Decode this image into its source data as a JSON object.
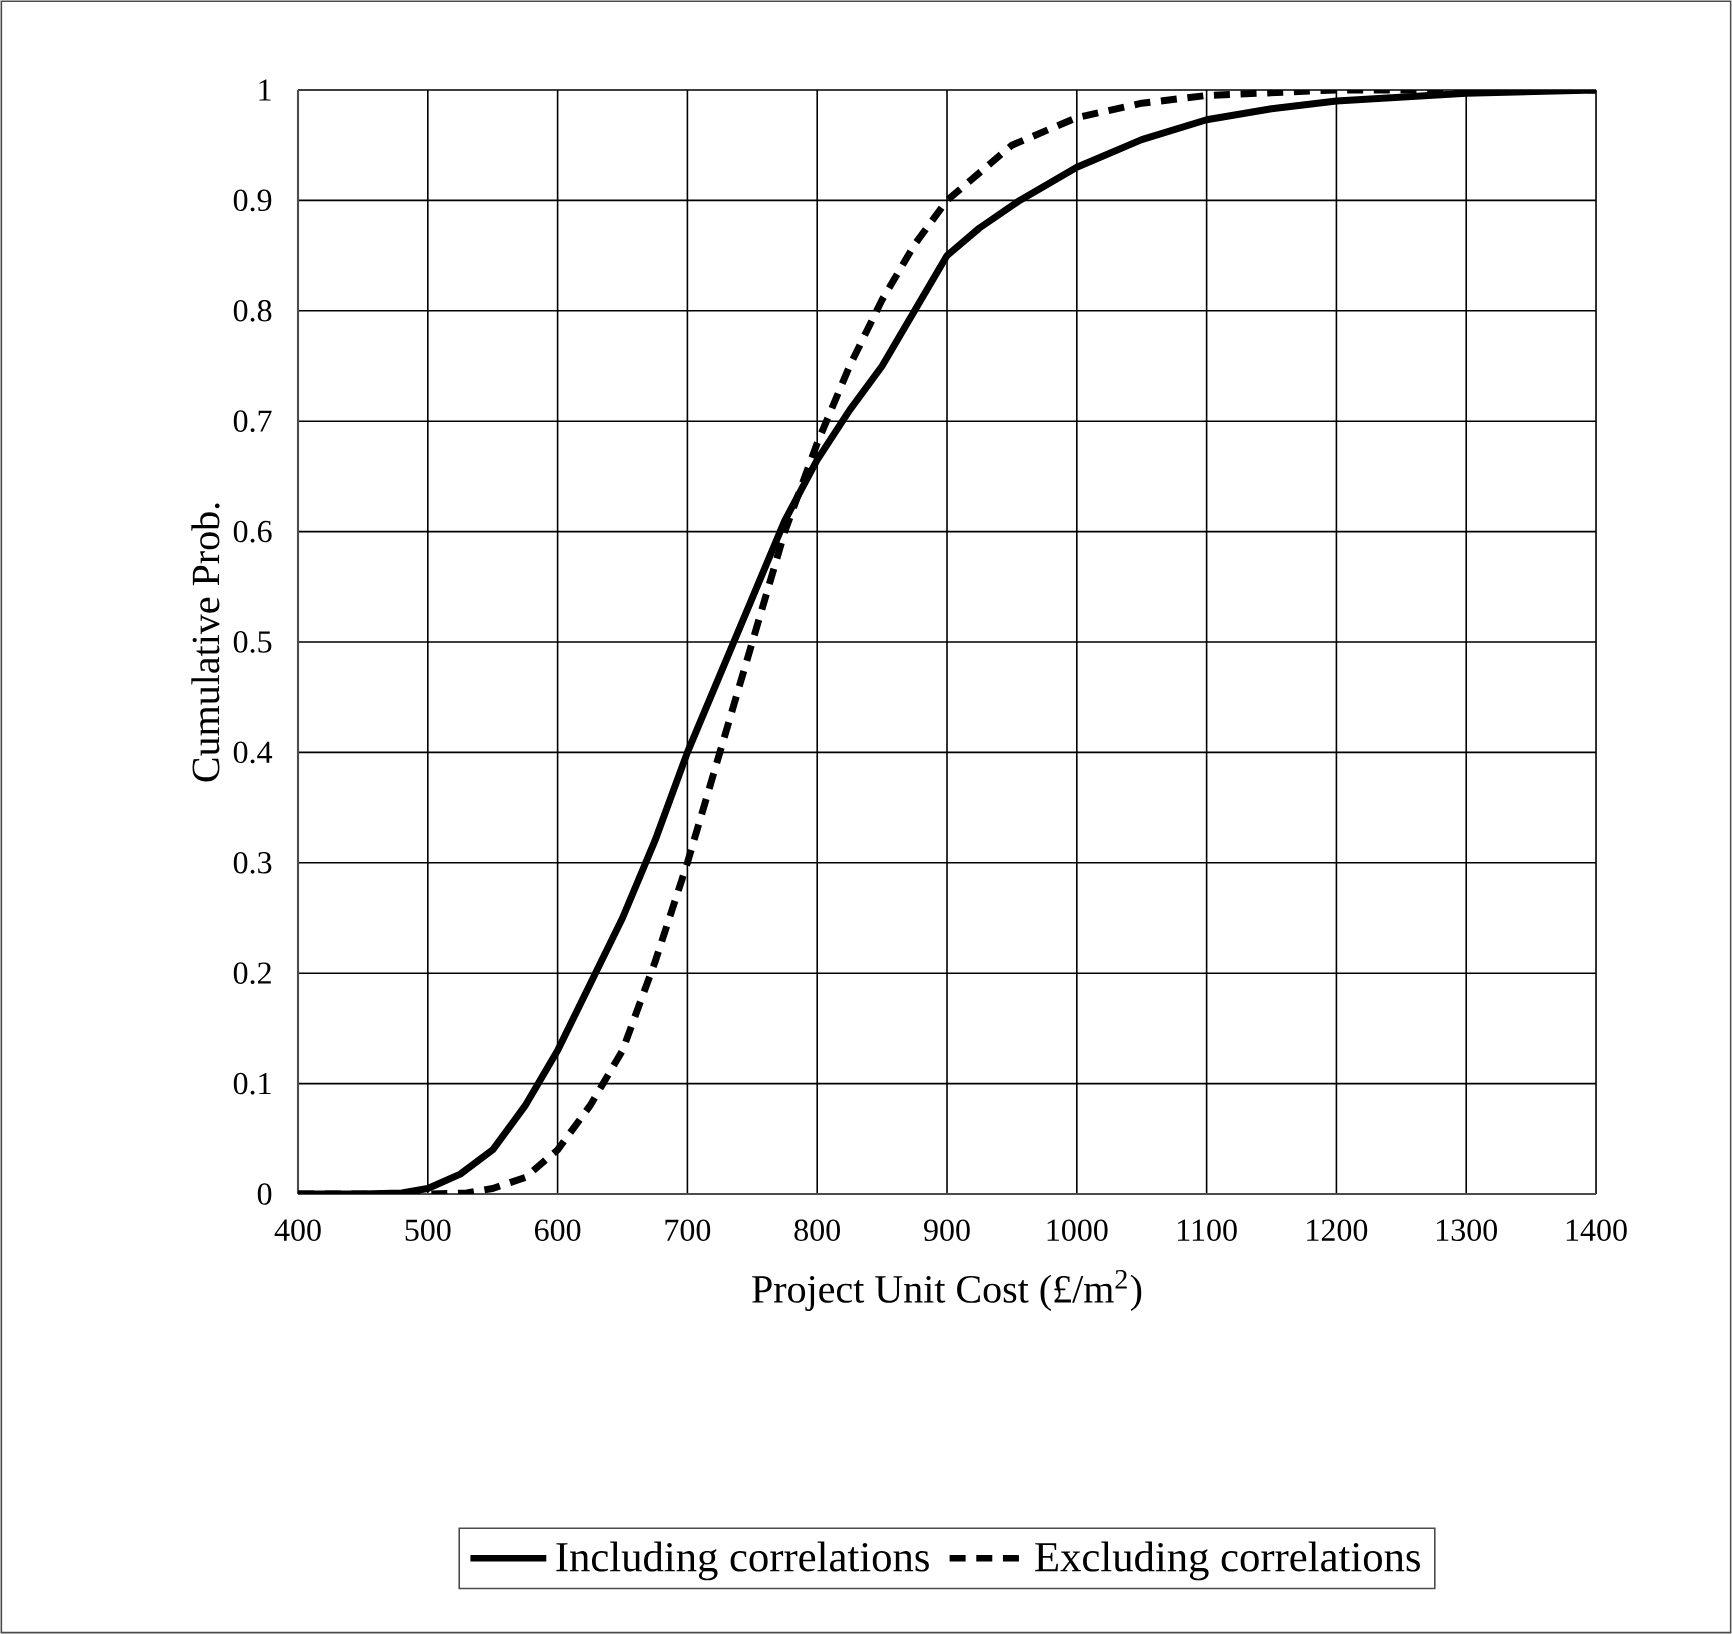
{
  "chart_data": {
    "type": "line",
    "xlabel": "Project Unit Cost (£/m$^{2}$)",
    "ylabel": "Cumulative Prob.",
    "xlim": [
      400,
      1400
    ],
    "xticks": [
      400,
      500,
      600,
      700,
      800,
      900,
      1000,
      1100,
      1200,
      1300,
      1400
    ],
    "ylim": [
      0,
      1
    ],
    "yticks": [
      0,
      0.1,
      0.2,
      0.3,
      0.4,
      0.5,
      0.6,
      0.7,
      0.8,
      0.9,
      1
    ],
    "grid": true,
    "legend": "bottom",
    "marker": "none",
    "series": [
      {
        "name": "Including correlations",
        "color": "#000000",
        "line_style": "solid",
        "x": [
          400,
          450,
          480,
          500,
          525,
          550,
          575,
          600,
          625,
          650,
          675,
          700,
          725,
          750,
          775,
          800,
          825,
          850,
          875,
          900,
          925,
          956,
          1000,
          1050,
          1100,
          1150,
          1200,
          1300,
          1400
        ],
        "values": [
          0,
          0,
          0.001,
          0.005,
          0.018,
          0.04,
          0.08,
          0.13,
          0.19,
          0.25,
          0.32,
          0.4,
          0.47,
          0.54,
          0.61,
          0.665,
          0.71,
          0.75,
          0.8,
          0.85,
          0.875,
          0.9,
          0.93,
          0.955,
          0.973,
          0.983,
          0.99,
          0.997,
          1
        ]
      },
      {
        "name": "Excluding correlations",
        "color": "#000000",
        "line_style": "dashed",
        "x": [
          400,
          500,
          530,
          550,
          575,
          600,
          625,
          650,
          675,
          700,
          725,
          750,
          775,
          800,
          825,
          850,
          875,
          900,
          950,
          1000,
          1050,
          1100,
          1200,
          1300,
          1400
        ],
        "values": [
          0,
          0,
          0.001,
          0.005,
          0.015,
          0.04,
          0.08,
          0.13,
          0.21,
          0.3,
          0.4,
          0.5,
          0.6,
          0.68,
          0.75,
          0.81,
          0.86,
          0.9,
          0.95,
          0.975,
          0.988,
          0.995,
          1,
          1,
          1
        ]
      }
    ]
  }
}
